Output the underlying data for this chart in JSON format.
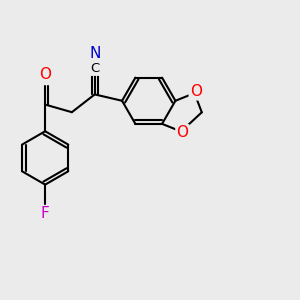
{
  "bg_color": "#ebebeb",
  "bond_color": "#000000",
  "bond_width": 1.5,
  "dbo": 0.055,
  "atom_colors": {
    "O": "#ff0000",
    "N": "#0000cc",
    "F": "#cc00cc",
    "C": "#000000"
  },
  "font_size": 10,
  "fig_size": [
    3.0,
    3.0
  ],
  "dpi": 100,
  "ring_r": 0.42
}
